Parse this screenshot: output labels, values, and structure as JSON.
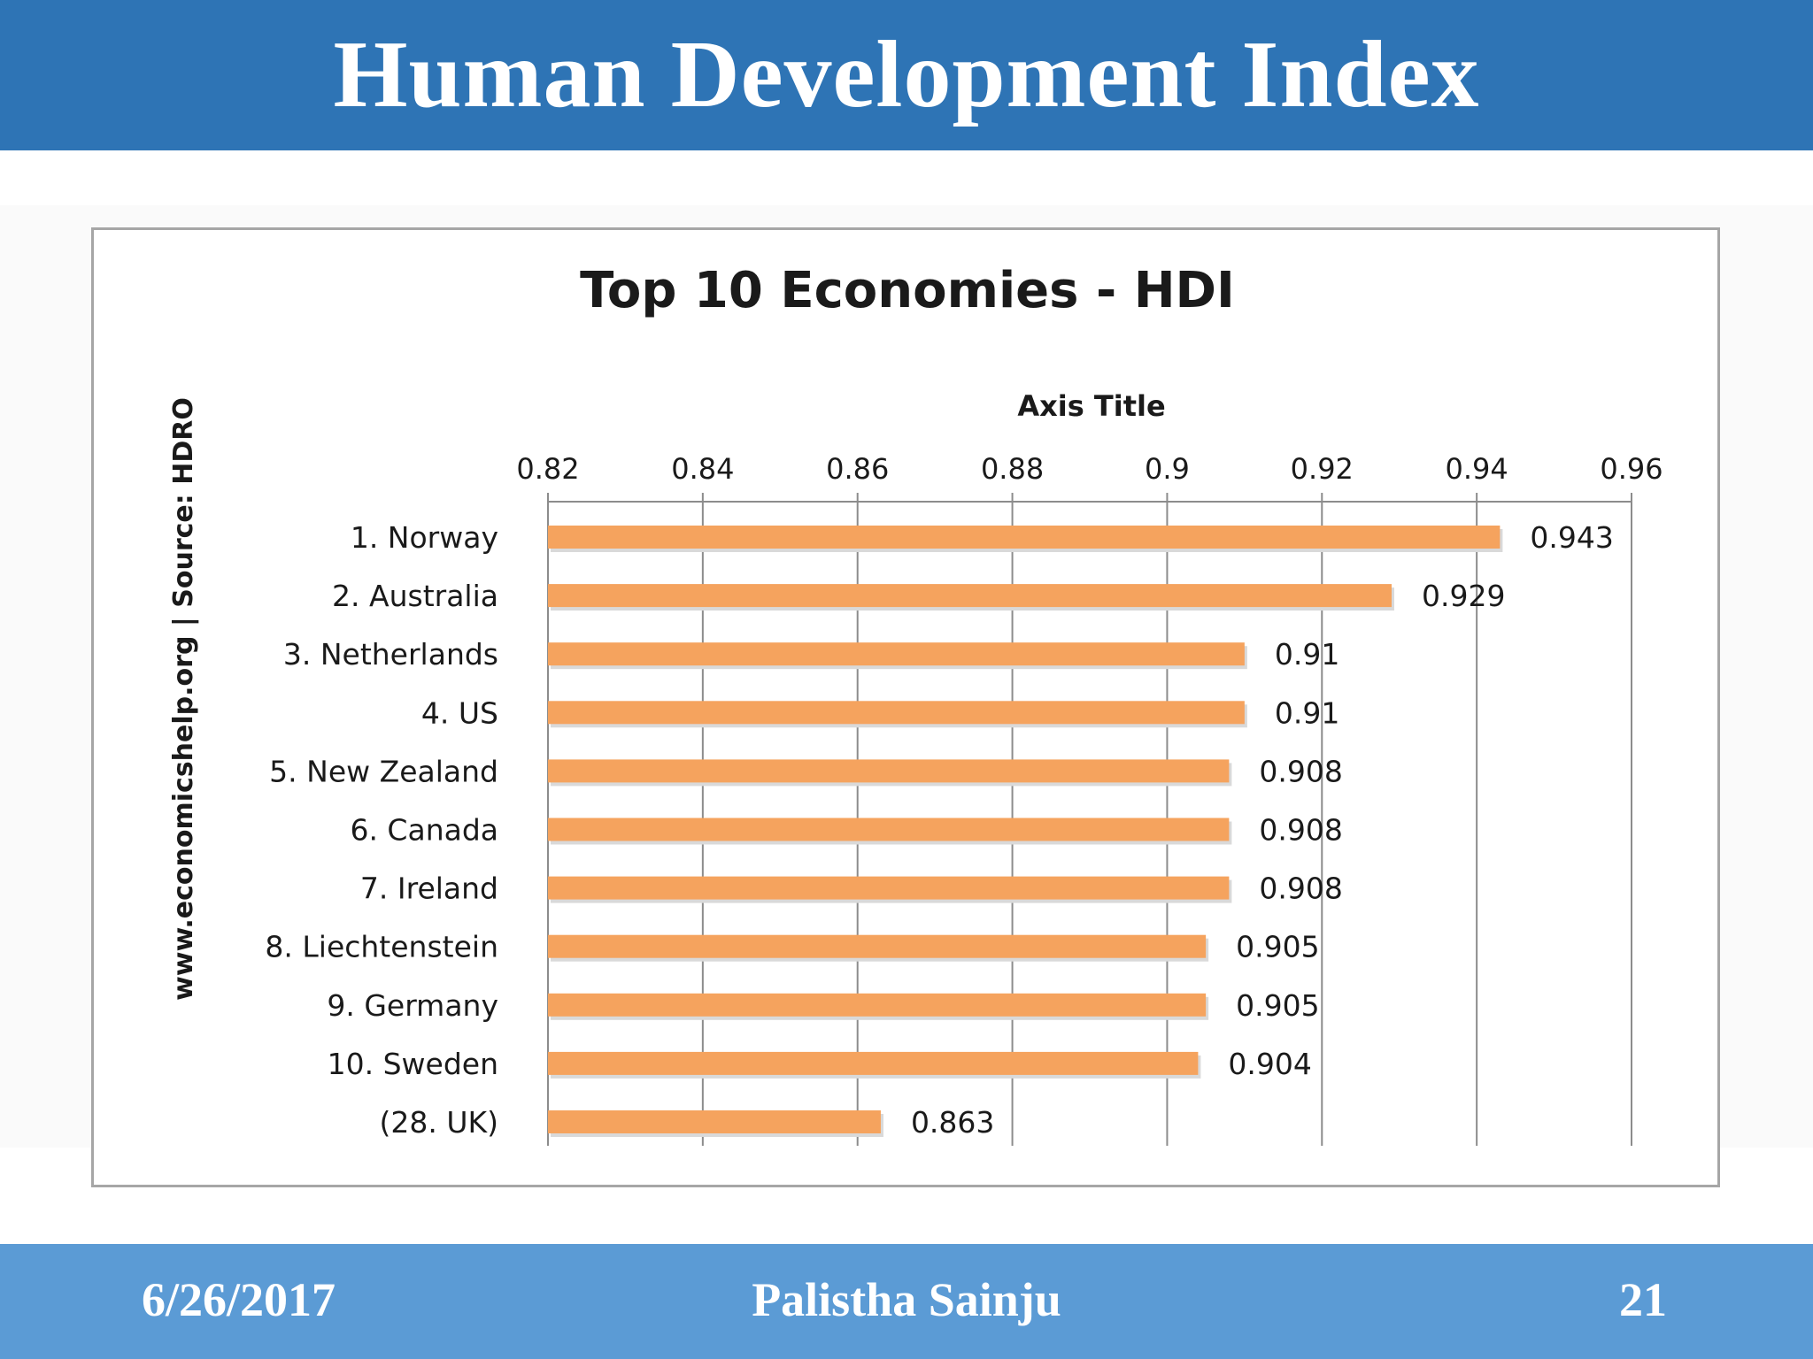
{
  "slide": {
    "title": "Human Development Index",
    "footer": {
      "date": "6/26/2017",
      "author": "Palistha Sainju",
      "page": "21"
    }
  },
  "colors": {
    "title_bar": "#2e74b5",
    "footer_bar": "#5b9bd5",
    "bar": "#f5a35e",
    "grid": "#8c8c8c"
  },
  "chart_data": {
    "type": "bar",
    "orientation": "horizontal",
    "title": "Top 10 Economies - HDI",
    "axis_title": "Axis Title",
    "side_note": "www.economicshelp.org | Source: HDRO",
    "xlim": [
      0.82,
      0.96
    ],
    "ticks": [
      "0.82",
      "0.84",
      "0.86",
      "0.88",
      "0.9",
      "0.92",
      "0.94",
      "0.96"
    ],
    "grid": true,
    "axis_position": "top",
    "categories": [
      "1. Norway",
      "2. Australia",
      "3. Netherlands",
      "4. US",
      "5.  New Zealand",
      "6. Canada",
      "7. Ireland",
      "8.  Liechtenstein",
      "9. Germany",
      "10. Sweden",
      "(28. UK)"
    ],
    "values": [
      0.943,
      0.929,
      0.91,
      0.91,
      0.908,
      0.908,
      0.908,
      0.905,
      0.905,
      0.904,
      0.863
    ],
    "data_labels": [
      "0.943",
      "0.929",
      "0.91",
      "0.91",
      "0.908",
      "0.908",
      "0.908",
      "0.905",
      "0.905",
      "0.904",
      "0.863"
    ]
  }
}
